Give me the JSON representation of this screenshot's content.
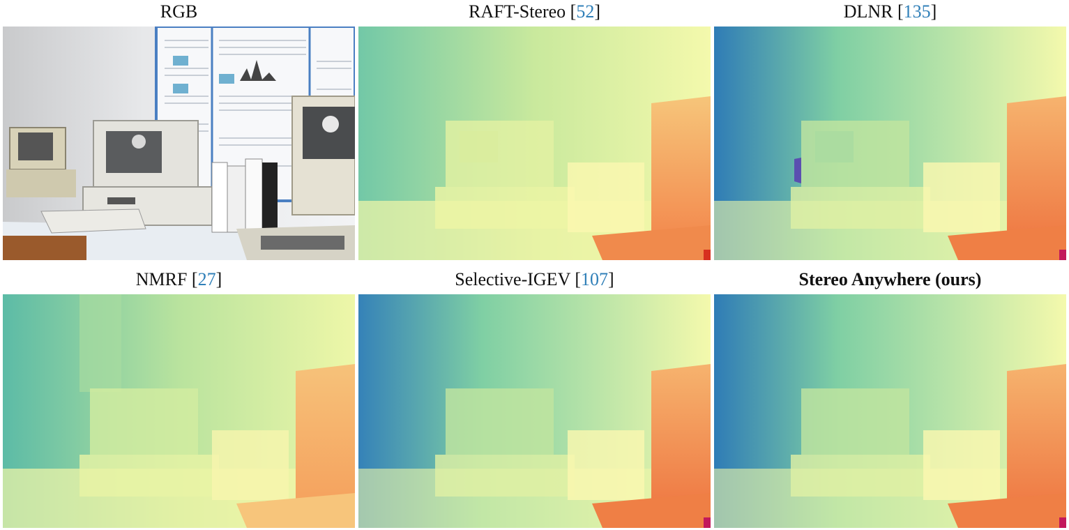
{
  "figure": {
    "panels": [
      {
        "title": "RGB",
        "ref": "",
        "bold": false,
        "image": "rgb-photo"
      },
      {
        "title": "RAFT-Stereo [",
        "ref": "52",
        "bold": false,
        "image": "disparity-map"
      },
      {
        "title": "DLNR [",
        "ref": "135",
        "bold": false,
        "image": "disparity-map"
      },
      {
        "title": "NMRF [",
        "ref": "27",
        "bold": false,
        "image": "disparity-map"
      },
      {
        "title": "Selective-IGEV [",
        "ref": "107",
        "bold": false,
        "image": "disparity-map"
      },
      {
        "title": "Stereo Anywhere (ours)",
        "ref": "",
        "bold": true,
        "image": "disparity-map"
      }
    ],
    "colors": {
      "citation": "#2f7fb8",
      "far_blue": "#2f7cb6",
      "mid_green": "#7fcfa4",
      "near_yellow": "#f4f9ac",
      "near_orange": "#f07c4a",
      "closest_red": "#d7301f"
    }
  }
}
